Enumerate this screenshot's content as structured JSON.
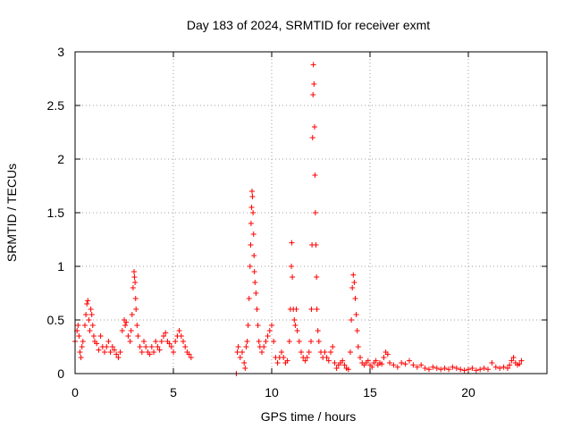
{
  "chart_data": {
    "type": "scatter",
    "title": "Day 183 of 2024, SRMTID for receiver exmt",
    "xlabel": "GPS time / hours",
    "ylabel": "SRMTID / TECUs",
    "xlim": [
      0,
      24
    ],
    "ylim": [
      0,
      3
    ],
    "xticks": [
      0,
      5,
      10,
      15,
      20
    ],
    "yticks": [
      0,
      0.5,
      1,
      1.5,
      2,
      2.5,
      3
    ],
    "ytick_labels": [
      "0",
      "0.5",
      "1",
      "1.5",
      "2",
      "2.5",
      "3"
    ],
    "grid": true,
    "marker": "+",
    "series": [
      {
        "name": "SRMTID",
        "color": "#ff0000",
        "points": [
          [
            0.0,
            0.3
          ],
          [
            0.1,
            0.4
          ],
          [
            0.15,
            0.45
          ],
          [
            0.2,
            0.35
          ],
          [
            0.25,
            0.2
          ],
          [
            0.3,
            0.15
          ],
          [
            0.35,
            0.25
          ],
          [
            0.4,
            0.3
          ],
          [
            0.5,
            0.45
          ],
          [
            0.55,
            0.55
          ],
          [
            0.6,
            0.65
          ],
          [
            0.65,
            0.68
          ],
          [
            0.7,
            0.5
          ],
          [
            0.75,
            0.4
          ],
          [
            0.8,
            0.6
          ],
          [
            0.85,
            0.55
          ],
          [
            0.9,
            0.45
          ],
          [
            0.95,
            0.35
          ],
          [
            1.0,
            0.3
          ],
          [
            1.1,
            0.28
          ],
          [
            1.2,
            0.22
          ],
          [
            1.3,
            0.35
          ],
          [
            1.4,
            0.25
          ],
          [
            1.5,
            0.2
          ],
          [
            1.6,
            0.25
          ],
          [
            1.7,
            0.3
          ],
          [
            1.8,
            0.2
          ],
          [
            1.9,
            0.25
          ],
          [
            2.0,
            0.22
          ],
          [
            2.1,
            0.18
          ],
          [
            2.2,
            0.15
          ],
          [
            2.3,
            0.2
          ],
          [
            2.4,
            0.4
          ],
          [
            2.5,
            0.5
          ],
          [
            2.55,
            0.45
          ],
          [
            2.6,
            0.48
          ],
          [
            2.7,
            0.35
          ],
          [
            2.8,
            0.3
          ],
          [
            2.85,
            0.4
          ],
          [
            2.9,
            0.55
          ],
          [
            2.95,
            0.8
          ],
          [
            3.0,
            0.95
          ],
          [
            3.02,
            0.9
          ],
          [
            3.05,
            0.85
          ],
          [
            3.08,
            0.7
          ],
          [
            3.1,
            0.6
          ],
          [
            3.15,
            0.45
          ],
          [
            3.2,
            0.35
          ],
          [
            3.3,
            0.25
          ],
          [
            3.4,
            0.2
          ],
          [
            3.5,
            0.3
          ],
          [
            3.6,
            0.25
          ],
          [
            3.7,
            0.2
          ],
          [
            3.8,
            0.18
          ],
          [
            3.9,
            0.25
          ],
          [
            4.0,
            0.2
          ],
          [
            4.1,
            0.3
          ],
          [
            4.2,
            0.25
          ],
          [
            4.3,
            0.22
          ],
          [
            4.4,
            0.3
          ],
          [
            4.5,
            0.35
          ],
          [
            4.6,
            0.38
          ],
          [
            4.7,
            0.3
          ],
          [
            4.8,
            0.28
          ],
          [
            4.9,
            0.25
          ],
          [
            5.0,
            0.2
          ],
          [
            5.1,
            0.3
          ],
          [
            5.2,
            0.35
          ],
          [
            5.3,
            0.4
          ],
          [
            5.4,
            0.35
          ],
          [
            5.5,
            0.3
          ],
          [
            5.6,
            0.25
          ],
          [
            5.7,
            0.2
          ],
          [
            5.8,
            0.18
          ],
          [
            5.9,
            0.15
          ],
          [
            8.2,
            0.0
          ],
          [
            8.25,
            0.2
          ],
          [
            8.3,
            0.25
          ],
          [
            8.4,
            0.15
          ],
          [
            8.5,
            0.2
          ],
          [
            8.6,
            0.1
          ],
          [
            8.65,
            0.05
          ],
          [
            8.7,
            0.25
          ],
          [
            8.75,
            0.3
          ],
          [
            8.8,
            0.45
          ],
          [
            8.85,
            0.7
          ],
          [
            8.9,
            1.0
          ],
          [
            8.93,
            1.2
          ],
          [
            8.95,
            1.4
          ],
          [
            8.98,
            1.55
          ],
          [
            9.0,
            1.7
          ],
          [
            9.02,
            1.65
          ],
          [
            9.05,
            1.5
          ],
          [
            9.08,
            1.3
          ],
          [
            9.1,
            1.1
          ],
          [
            9.12,
            0.95
          ],
          [
            9.15,
            0.85
          ],
          [
            9.2,
            0.75
          ],
          [
            9.25,
            0.6
          ],
          [
            9.3,
            0.45
          ],
          [
            9.35,
            0.3
          ],
          [
            9.4,
            0.25
          ],
          [
            9.5,
            0.2
          ],
          [
            9.6,
            0.25
          ],
          [
            9.7,
            0.3
          ],
          [
            9.8,
            0.35
          ],
          [
            9.9,
            0.4
          ],
          [
            10.0,
            0.45
          ],
          [
            10.1,
            0.3
          ],
          [
            10.2,
            0.15
          ],
          [
            10.3,
            0.1
          ],
          [
            10.4,
            0.15
          ],
          [
            10.5,
            0.2
          ],
          [
            10.6,
            0.15
          ],
          [
            10.7,
            0.1
          ],
          [
            10.8,
            0.12
          ],
          [
            10.9,
            0.3
          ],
          [
            10.95,
            0.6
          ],
          [
            11.0,
            1.0
          ],
          [
            11.02,
            1.22
          ],
          [
            11.05,
            0.9
          ],
          [
            11.1,
            0.6
          ],
          [
            11.15,
            0.5
          ],
          [
            11.2,
            0.45
          ],
          [
            11.25,
            0.6
          ],
          [
            11.3,
            0.4
          ],
          [
            11.4,
            0.3
          ],
          [
            11.5,
            0.2
          ],
          [
            11.6,
            0.15
          ],
          [
            11.7,
            0.12
          ],
          [
            11.8,
            0.15
          ],
          [
            11.9,
            0.2
          ],
          [
            12.0,
            0.3
          ],
          [
            12.02,
            0.6
          ],
          [
            12.05,
            1.2
          ],
          [
            12.08,
            2.2
          ],
          [
            12.1,
            2.6
          ],
          [
            12.12,
            2.88
          ],
          [
            12.15,
            2.7
          ],
          [
            12.18,
            2.3
          ],
          [
            12.2,
            1.85
          ],
          [
            12.22,
            1.5
          ],
          [
            12.25,
            1.2
          ],
          [
            12.28,
            0.9
          ],
          [
            12.3,
            0.6
          ],
          [
            12.35,
            0.4
          ],
          [
            12.4,
            0.3
          ],
          [
            12.5,
            0.2
          ],
          [
            12.6,
            0.15
          ],
          [
            12.7,
            0.2
          ],
          [
            12.8,
            0.15
          ],
          [
            12.9,
            0.12
          ],
          [
            13.0,
            0.2
          ],
          [
            13.1,
            0.25
          ],
          [
            13.2,
            0.1
          ],
          [
            13.3,
            0.05
          ],
          [
            13.4,
            0.08
          ],
          [
            13.5,
            0.1
          ],
          [
            13.6,
            0.12
          ],
          [
            13.7,
            0.08
          ],
          [
            13.8,
            0.05
          ],
          [
            13.9,
            0.04
          ],
          [
            14.0,
            0.2
          ],
          [
            14.05,
            0.5
          ],
          [
            14.1,
            0.8
          ],
          [
            14.15,
            0.92
          ],
          [
            14.2,
            0.85
          ],
          [
            14.25,
            0.7
          ],
          [
            14.3,
            0.55
          ],
          [
            14.35,
            0.4
          ],
          [
            14.4,
            0.25
          ],
          [
            14.5,
            0.15
          ],
          [
            14.6,
            0.1
          ],
          [
            14.7,
            0.08
          ],
          [
            14.8,
            0.1
          ],
          [
            14.9,
            0.12
          ],
          [
            15.0,
            0.08
          ],
          [
            15.1,
            0.06
          ],
          [
            15.2,
            0.1
          ],
          [
            15.3,
            0.12
          ],
          [
            15.4,
            0.08
          ],
          [
            15.5,
            0.1
          ],
          [
            15.6,
            0.09
          ],
          [
            15.7,
            0.15
          ],
          [
            15.8,
            0.2
          ],
          [
            15.9,
            0.18
          ],
          [
            16.0,
            0.1
          ],
          [
            16.2,
            0.08
          ],
          [
            16.4,
            0.06
          ],
          [
            16.6,
            0.1
          ],
          [
            16.8,
            0.09
          ],
          [
            17.0,
            0.12
          ],
          [
            17.2,
            0.08
          ],
          [
            17.4,
            0.06
          ],
          [
            17.6,
            0.08
          ],
          [
            17.8,
            0.05
          ],
          [
            18.0,
            0.04
          ],
          [
            18.2,
            0.06
          ],
          [
            18.4,
            0.05
          ],
          [
            18.6,
            0.04
          ],
          [
            18.8,
            0.05
          ],
          [
            19.0,
            0.04
          ],
          [
            19.2,
            0.06
          ],
          [
            19.4,
            0.05
          ],
          [
            19.6,
            0.04
          ],
          [
            19.8,
            0.03
          ],
          [
            20.0,
            0.04
          ],
          [
            20.2,
            0.05
          ],
          [
            20.4,
            0.03
          ],
          [
            20.6,
            0.04
          ],
          [
            20.8,
            0.05
          ],
          [
            21.0,
            0.04
          ],
          [
            21.2,
            0.1
          ],
          [
            21.4,
            0.06
          ],
          [
            21.6,
            0.05
          ],
          [
            21.8,
            0.06
          ],
          [
            22.0,
            0.05
          ],
          [
            22.1,
            0.08
          ],
          [
            22.2,
            0.12
          ],
          [
            22.3,
            0.15
          ],
          [
            22.4,
            0.1
          ],
          [
            22.5,
            0.08
          ],
          [
            22.6,
            0.09
          ],
          [
            22.7,
            0.12
          ]
        ]
      }
    ]
  }
}
